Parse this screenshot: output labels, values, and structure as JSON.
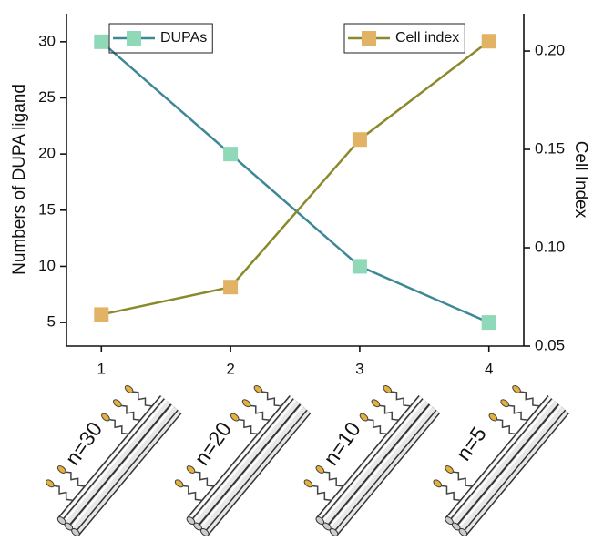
{
  "chart_data": {
    "type": "line",
    "x": [
      1,
      2,
      3,
      4
    ],
    "xlim": [
      0.73,
      4.27
    ],
    "xticks": [
      1,
      2,
      3,
      4
    ],
    "ylim": [
      2.9,
      32.5
    ],
    "yticks": [
      5,
      10,
      15,
      20,
      25,
      30
    ],
    "y2lim": [
      0.05,
      0.219
    ],
    "y2ticks": [
      0.05,
      {
        "value": 0.1,
        "label": "0.10"
      },
      0.15,
      {
        "value": 0.2,
        "label": "0.20"
      }
    ],
    "ylabel": "Numbers of DUPA ligand",
    "y2label": "Cell Index",
    "series": [
      {
        "name": "DUPAs",
        "color": "#3d8896",
        "marker_color": "#8fd8b8",
        "values": [
          30,
          20,
          10,
          5
        ]
      },
      {
        "name": "Cell index",
        "color": "#8a8a2c",
        "marker_color": "#e2b265",
        "axis": "y2",
        "values": [
          0.066,
          0.08,
          0.155,
          0.205
        ]
      }
    ],
    "annotations": [
      "n=30",
      "n=20",
      "n=10",
      "n=5"
    ]
  }
}
